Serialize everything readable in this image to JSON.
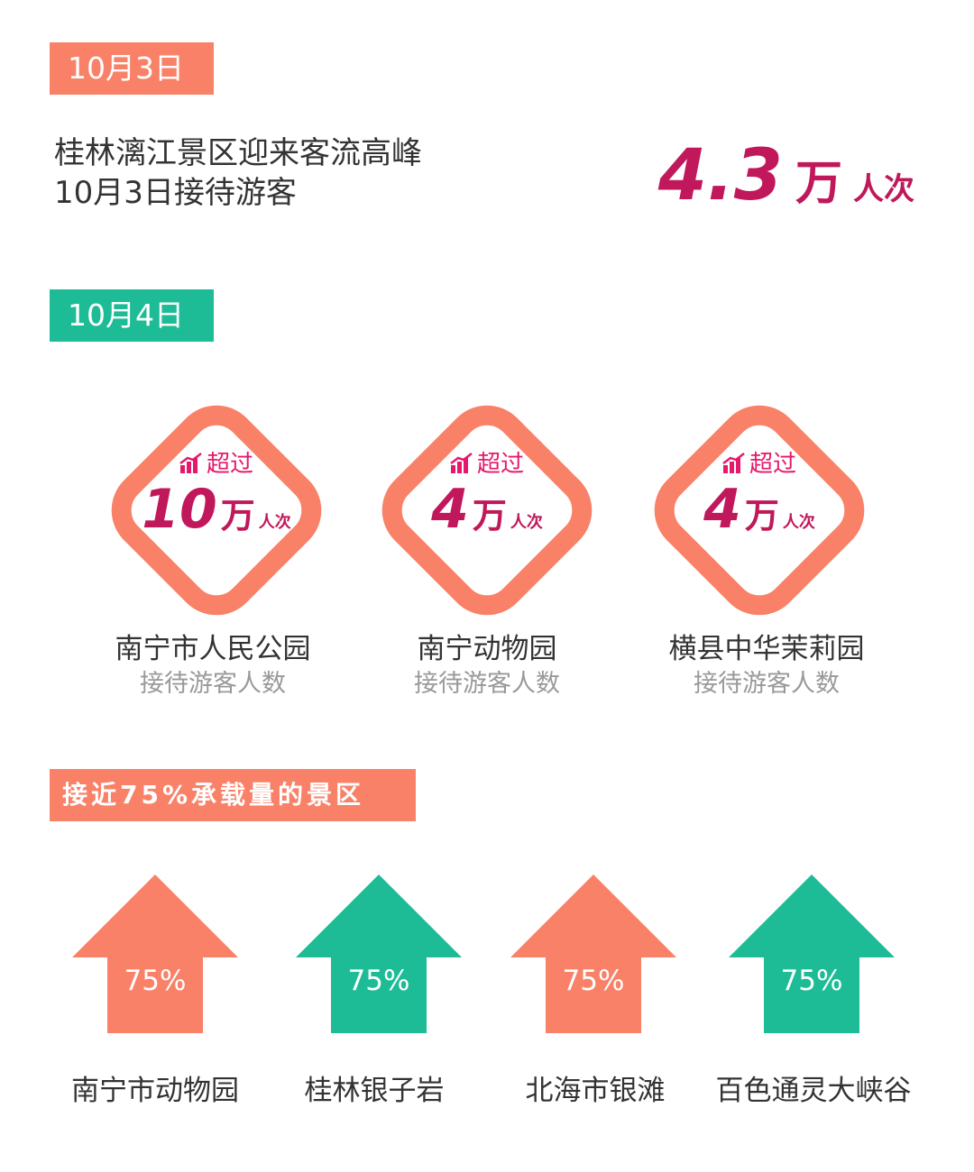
{
  "colors": {
    "coral": "#f98168",
    "green": "#1ebc96",
    "magenta": "#c0185a"
  },
  "oct3": {
    "date_tag": "10月3日",
    "headline_line1": "桂林漓江景区迎来客流高峰",
    "headline_line2": "10月3日接待游客",
    "stat_number": "4.3",
    "stat_wan": "万",
    "stat_unit": "人次"
  },
  "oct4": {
    "date_tag": "10月4日",
    "exceed_label": "超过",
    "sub_label": "接待游客人数",
    "items": [
      {
        "number": "10",
        "wan": "万",
        "unit": "人次",
        "name": "南宁市人民公园"
      },
      {
        "number": "4",
        "wan": "万",
        "unit": "人次",
        "name": "南宁动物园"
      },
      {
        "number": "4",
        "wan": "万",
        "unit": "人次",
        "name": "横县中华茉莉园"
      }
    ]
  },
  "capacity": {
    "tag": "接近75%承载量的景区",
    "items": [
      {
        "percent": "75%",
        "name": "南宁市动物园",
        "color": "#f98168"
      },
      {
        "percent": "75%",
        "name": "桂林银子岩",
        "color": "#1ebc96"
      },
      {
        "percent": "75%",
        "name": "北海市银滩",
        "color": "#f98168"
      },
      {
        "percent": "75%",
        "name": "百色通灵大峡谷",
        "color": "#1ebc96"
      }
    ]
  }
}
